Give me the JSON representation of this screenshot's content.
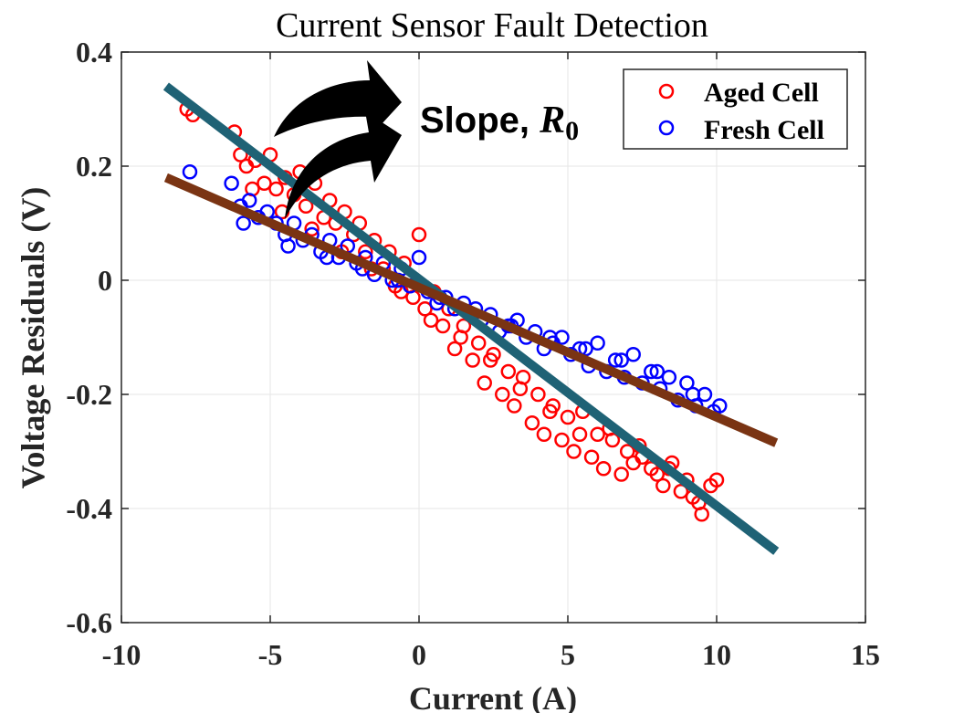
{
  "chart_data": {
    "type": "scatter",
    "title": "Current Sensor Fault Detection",
    "xlabel": "Current (A)",
    "ylabel": "Voltage Residuals (V)",
    "xlim": [
      -10,
      15
    ],
    "ylim": [
      -0.6,
      0.4
    ],
    "xticks": [
      -10,
      -5,
      0,
      5,
      10,
      15
    ],
    "yticks": [
      -0.6,
      -0.4,
      -0.2,
      0,
      0.2,
      0.4
    ],
    "xtick_labels": [
      "-10",
      "-5",
      "0",
      "5",
      "10",
      "15"
    ],
    "ytick_labels": [
      "-0.6",
      "-0.4",
      "-0.2",
      "0",
      "0.2",
      "0.4"
    ],
    "grid": true,
    "legend_position": "top-right",
    "series": [
      {
        "name": "Aged Cell",
        "marker": "open-circle",
        "color": "#ff0000",
        "x": [
          -7.8,
          -7.6,
          -6.2,
          -6.0,
          -5.8,
          -5.5,
          -5.2,
          -5.0,
          -4.8,
          -4.5,
          -4.2,
          -4.0,
          -3.8,
          -3.5,
          -3.2,
          -3.0,
          -2.8,
          -2.5,
          -2.2,
          -2.0,
          -1.8,
          -1.5,
          -1.2,
          -1.0,
          -0.8,
          -0.5,
          -0.2,
          0.0,
          0.2,
          0.5,
          0.8,
          1.0,
          1.2,
          1.5,
          1.8,
          2.0,
          2.2,
          2.5,
          2.8,
          3.0,
          3.2,
          3.5,
          3.8,
          4.0,
          4.2,
          4.5,
          4.8,
          5.0,
          5.2,
          5.5,
          5.8,
          6.0,
          6.2,
          6.5,
          6.8,
          7.0,
          7.2,
          7.5,
          7.8,
          8.0,
          8.2,
          8.5,
          8.8,
          9.0,
          9.2,
          9.5,
          9.8,
          10.0,
          -5.6,
          -4.6,
          -3.6,
          -2.6,
          -1.6,
          -0.6,
          0.4,
          1.4,
          2.4,
          3.4,
          4.4,
          5.4,
          6.4,
          7.4,
          8.4,
          9.4
        ],
        "y": [
          0.3,
          0.29,
          0.26,
          0.22,
          0.2,
          0.21,
          0.17,
          0.22,
          0.16,
          0.18,
          0.15,
          0.19,
          0.13,
          0.17,
          0.11,
          0.14,
          0.1,
          0.12,
          0.08,
          0.1,
          0.05,
          0.07,
          0.02,
          0.05,
          -0.01,
          0.03,
          -0.03,
          0.08,
          -0.05,
          -0.02,
          -0.08,
          -0.05,
          -0.12,
          -0.08,
          -0.14,
          -0.11,
          -0.18,
          -0.13,
          -0.2,
          -0.16,
          -0.22,
          -0.17,
          -0.25,
          -0.2,
          -0.27,
          -0.22,
          -0.28,
          -0.24,
          -0.3,
          -0.23,
          -0.31,
          -0.27,
          -0.33,
          -0.28,
          -0.34,
          -0.3,
          -0.32,
          -0.31,
          -0.33,
          -0.34,
          -0.36,
          -0.32,
          -0.37,
          -0.35,
          -0.38,
          -0.41,
          -0.36,
          -0.35,
          0.16,
          0.12,
          0.09,
          0.05,
          0.02,
          -0.02,
          -0.07,
          -0.1,
          -0.14,
          -0.19,
          -0.23,
          -0.27,
          -0.26,
          -0.29,
          -0.33,
          -0.39
        ]
      },
      {
        "name": "Fresh Cell",
        "marker": "open-circle",
        "color": "#0000ff",
        "x": [
          -7.7,
          -6.3,
          -6.0,
          -5.7,
          -5.4,
          -5.1,
          -4.8,
          -4.5,
          -4.2,
          -3.9,
          -3.6,
          -3.3,
          -3.0,
          -2.7,
          -2.4,
          -2.1,
          -1.8,
          -1.5,
          -1.2,
          -0.9,
          -0.6,
          -0.3,
          0.0,
          0.3,
          0.6,
          0.9,
          1.2,
          1.5,
          1.8,
          2.1,
          2.4,
          2.7,
          3.0,
          3.3,
          3.6,
          3.9,
          4.2,
          4.5,
          4.8,
          5.1,
          5.4,
          5.7,
          6.0,
          6.3,
          6.6,
          6.9,
          7.2,
          7.5,
          7.8,
          8.1,
          8.4,
          8.7,
          9.0,
          9.3,
          9.6,
          9.9,
          10.1,
          -5.9,
          -4.4,
          -3.1,
          -1.9,
          -0.7,
          0.7,
          1.9,
          3.1,
          4.4,
          5.6,
          6.8,
          8.0,
          9.2
        ],
        "y": [
          0.19,
          0.17,
          0.13,
          0.14,
          0.11,
          0.12,
          0.1,
          0.08,
          0.1,
          0.07,
          0.08,
          0.05,
          0.07,
          0.04,
          0.06,
          0.03,
          0.04,
          0.01,
          0.03,
          0.0,
          0.02,
          -0.01,
          0.04,
          -0.02,
          -0.04,
          -0.03,
          -0.05,
          -0.04,
          -0.06,
          -0.07,
          -0.06,
          -0.09,
          -0.08,
          -0.07,
          -0.1,
          -0.09,
          -0.12,
          -0.11,
          -0.1,
          -0.13,
          -0.12,
          -0.15,
          -0.11,
          -0.16,
          -0.14,
          -0.17,
          -0.13,
          -0.18,
          -0.16,
          -0.19,
          -0.17,
          -0.21,
          -0.18,
          -0.22,
          -0.2,
          -0.23,
          -0.22,
          0.1,
          0.06,
          0.04,
          0.02,
          0.0,
          -0.03,
          -0.05,
          -0.08,
          -0.1,
          -0.12,
          -0.14,
          -0.16,
          -0.2
        ]
      }
    ],
    "lines": [
      {
        "color": "#1f6275",
        "x": [
          -8.5,
          12.0
        ],
        "y": [
          0.34,
          -0.475
        ]
      },
      {
        "color": "#7a3413",
        "x": [
          -8.5,
          12.0
        ],
        "y": [
          0.18,
          -0.285
        ]
      }
    ],
    "annotation": {
      "text": "Slope, ",
      "symbol": "R",
      "subscript": "0"
    }
  }
}
